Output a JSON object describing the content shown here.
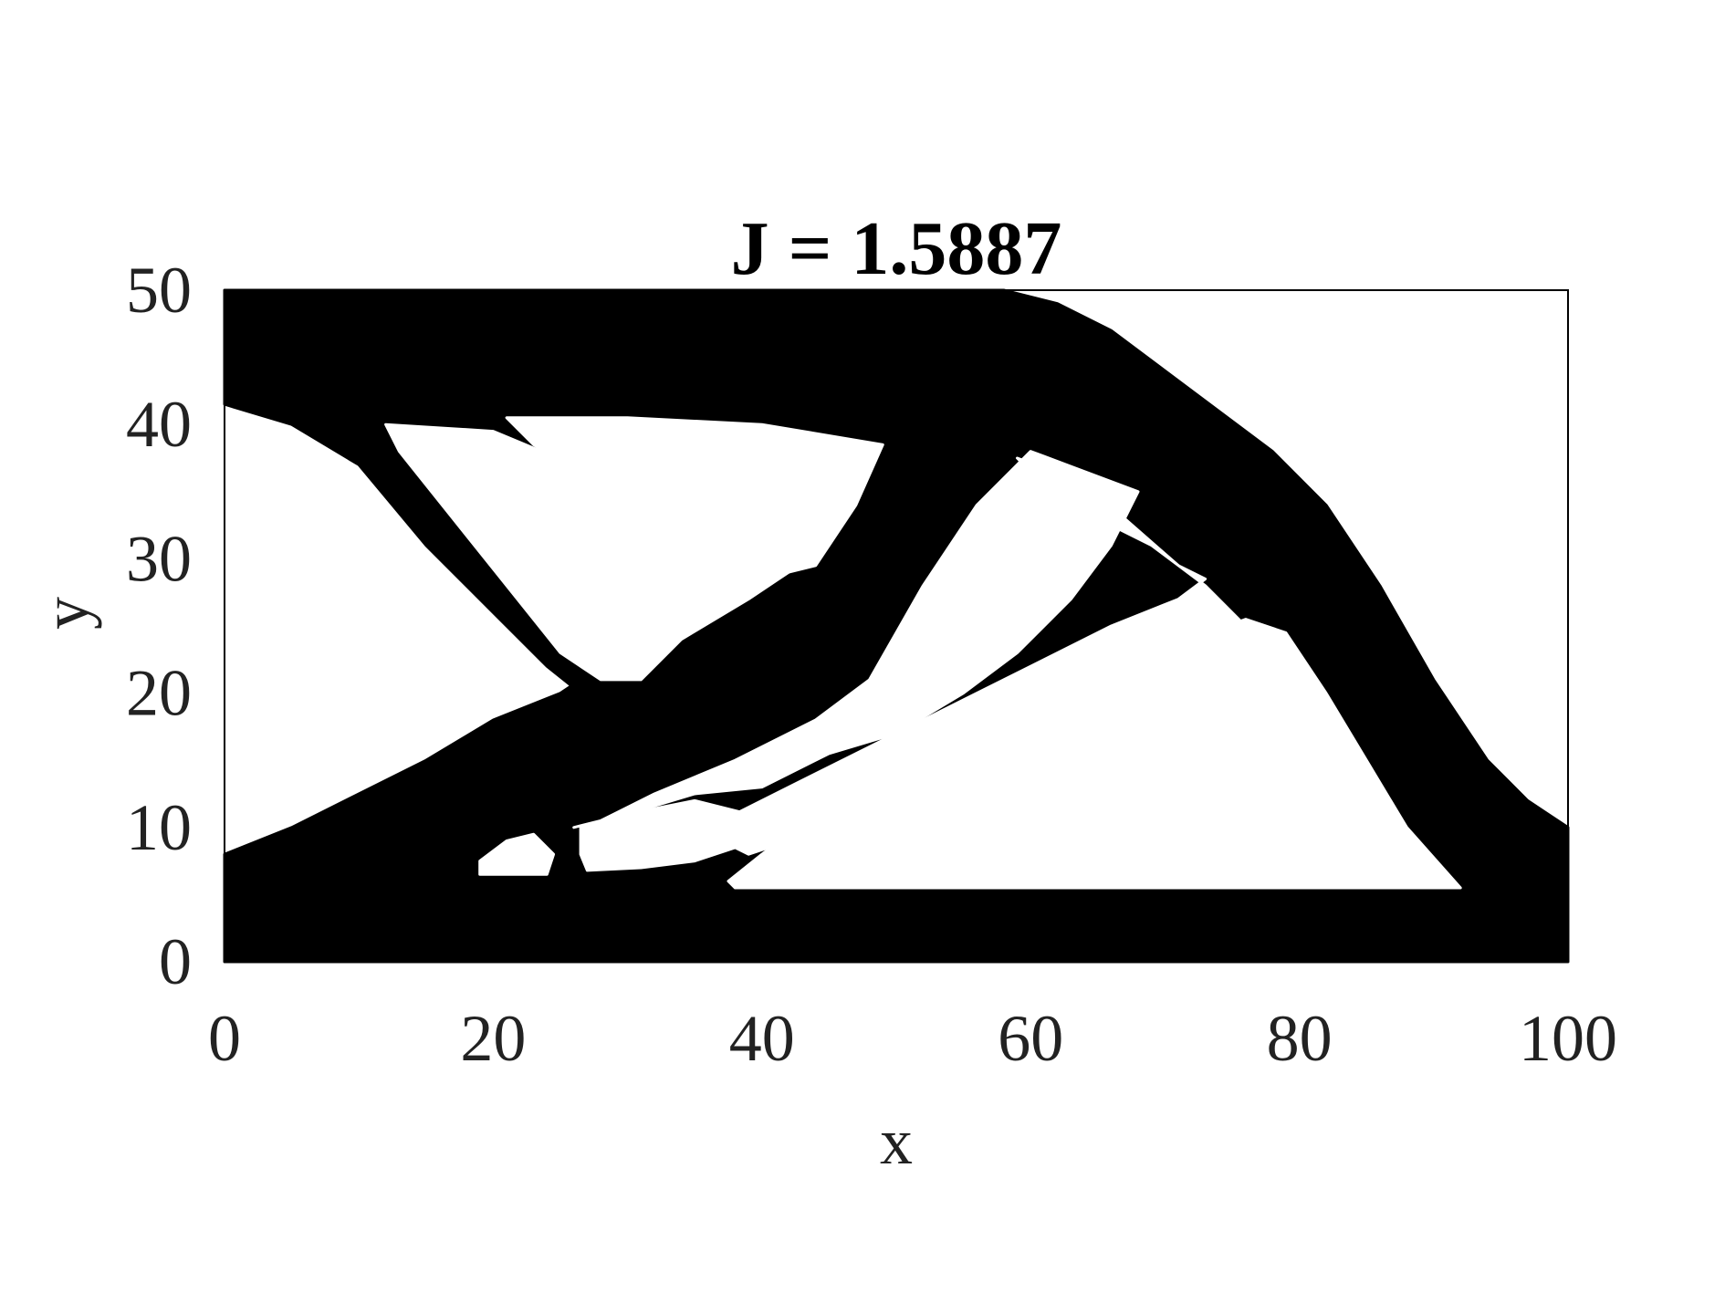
{
  "chart_data": {
    "type": "heatmap",
    "title": "J = 1.5887",
    "xlabel": "x",
    "ylabel": "y",
    "xlim": [
      0,
      100
    ],
    "ylim": [
      0,
      50
    ],
    "xticks": [
      0,
      20,
      40,
      60,
      80,
      100
    ],
    "yticks": [
      0,
      10,
      20,
      30,
      40,
      50
    ],
    "grid": false,
    "colors": {
      "solid": "#000000",
      "void": "#ffffff",
      "axes": "#000000",
      "text": "#222222"
    },
    "solid_regions": [
      {
        "name": "main-structure",
        "outline": [
          [
            0,
            50
          ],
          [
            58,
            50
          ],
          [
            62,
            49
          ],
          [
            66,
            47
          ],
          [
            70,
            44
          ],
          [
            74,
            41
          ],
          [
            78,
            38
          ],
          [
            82,
            34
          ],
          [
            86,
            28
          ],
          [
            90,
            21
          ],
          [
            94,
            15
          ],
          [
            97,
            12
          ],
          [
            100,
            10
          ],
          [
            100,
            0
          ],
          [
            0,
            0
          ],
          [
            0,
            8
          ],
          [
            5,
            10
          ],
          [
            10,
            12.5
          ],
          [
            15,
            15
          ],
          [
            20,
            18
          ],
          [
            25,
            20
          ],
          [
            26.5,
            21
          ],
          [
            26.5,
            20
          ],
          [
            24,
            22
          ],
          [
            20,
            26
          ],
          [
            15,
            31
          ],
          [
            10,
            37
          ],
          [
            5,
            40
          ],
          [
            0,
            41.5
          ]
        ]
      }
    ],
    "void_regions": [
      {
        "name": "void-upper-left-inner",
        "outline": [
          [
            12,
            40
          ],
          [
            20,
            39.5
          ],
          [
            26,
            37
          ],
          [
            32,
            34
          ],
          [
            38,
            31
          ],
          [
            42,
            29
          ],
          [
            39,
            27
          ],
          [
            34,
            24
          ],
          [
            31,
            21
          ],
          [
            28,
            21
          ],
          [
            25,
            23
          ],
          [
            21,
            28
          ],
          [
            17,
            33
          ],
          [
            13,
            38
          ]
        ]
      },
      {
        "name": "void-upper-middle",
        "outline": [
          [
            21,
            40.5
          ],
          [
            30,
            40.5
          ],
          [
            40,
            40
          ],
          [
            49,
            38.5
          ],
          [
            47,
            34
          ],
          [
            44,
            29.5
          ],
          [
            42,
            29
          ],
          [
            37,
            31
          ],
          [
            32,
            33.5
          ],
          [
            27,
            36
          ],
          [
            23,
            38.5
          ]
        ]
      },
      {
        "name": "void-right-triangle",
        "outline": [
          [
            59,
            37.5
          ],
          [
            63,
            36
          ],
          [
            67,
            33
          ],
          [
            71,
            29.5
          ],
          [
            73,
            28.5
          ],
          [
            71,
            27
          ],
          [
            66,
            25
          ],
          [
            60,
            22
          ],
          [
            54,
            19
          ],
          [
            48,
            16
          ],
          [
            42,
            13
          ],
          [
            38,
            11
          ],
          [
            37,
            9
          ],
          [
            39,
            8
          ],
          [
            45,
            10
          ],
          [
            50,
            11
          ],
          [
            55,
            14
          ],
          [
            60,
            16
          ],
          [
            65,
            18
          ],
          [
            70,
            20
          ],
          [
            74,
            22
          ],
          [
            76,
            25
          ],
          [
            73,
            28
          ],
          [
            69,
            31
          ],
          [
            64,
            33.5
          ],
          [
            61,
            35.5
          ]
        ]
      },
      {
        "name": "void-lower-band",
        "outline": [
          [
            26,
            10
          ],
          [
            30,
            11
          ],
          [
            35,
            12.5
          ],
          [
            40,
            13
          ],
          [
            45,
            15.5
          ],
          [
            50,
            17
          ],
          [
            55,
            20
          ],
          [
            59,
            23
          ],
          [
            63,
            27
          ],
          [
            66,
            31
          ],
          [
            68,
            35
          ],
          [
            60,
            38
          ],
          [
            56,
            34
          ],
          [
            52,
            28
          ],
          [
            48,
            21
          ],
          [
            44,
            18
          ],
          [
            38,
            15
          ],
          [
            32,
            12.5
          ],
          [
            28,
            10.5
          ]
        ]
      },
      {
        "name": "void-lower-right",
        "outline": [
          [
            38,
            5.5
          ],
          [
            50,
            5.5
          ],
          [
            60,
            5.5
          ],
          [
            70,
            5.5
          ],
          [
            80,
            5.5
          ],
          [
            92,
            5.5
          ],
          [
            88,
            10
          ],
          [
            85,
            15
          ],
          [
            82,
            20
          ],
          [
            79,
            24.5
          ],
          [
            76,
            25.5
          ],
          [
            72,
            24
          ],
          [
            67,
            22
          ],
          [
            62,
            20
          ],
          [
            56,
            17
          ],
          [
            50,
            14
          ],
          [
            44,
            11
          ],
          [
            40,
            8
          ],
          [
            37.5,
            6
          ]
        ]
      },
      {
        "name": "void-lower-left-pocket",
        "outline": [
          [
            19,
            6.5
          ],
          [
            24,
            6.5
          ],
          [
            24.5,
            8
          ],
          [
            23,
            9.5
          ],
          [
            21,
            9
          ],
          [
            19,
            7.5
          ]
        ]
      },
      {
        "name": "void-lower-center-pocket",
        "outline": [
          [
            27,
            6.8
          ],
          [
            31,
            7
          ],
          [
            35,
            7.5
          ],
          [
            38,
            8.5
          ],
          [
            39,
            11
          ],
          [
            35,
            12
          ],
          [
            30,
            11
          ],
          [
            26.5,
            10
          ],
          [
            26.5,
            8
          ]
        ]
      }
    ]
  }
}
